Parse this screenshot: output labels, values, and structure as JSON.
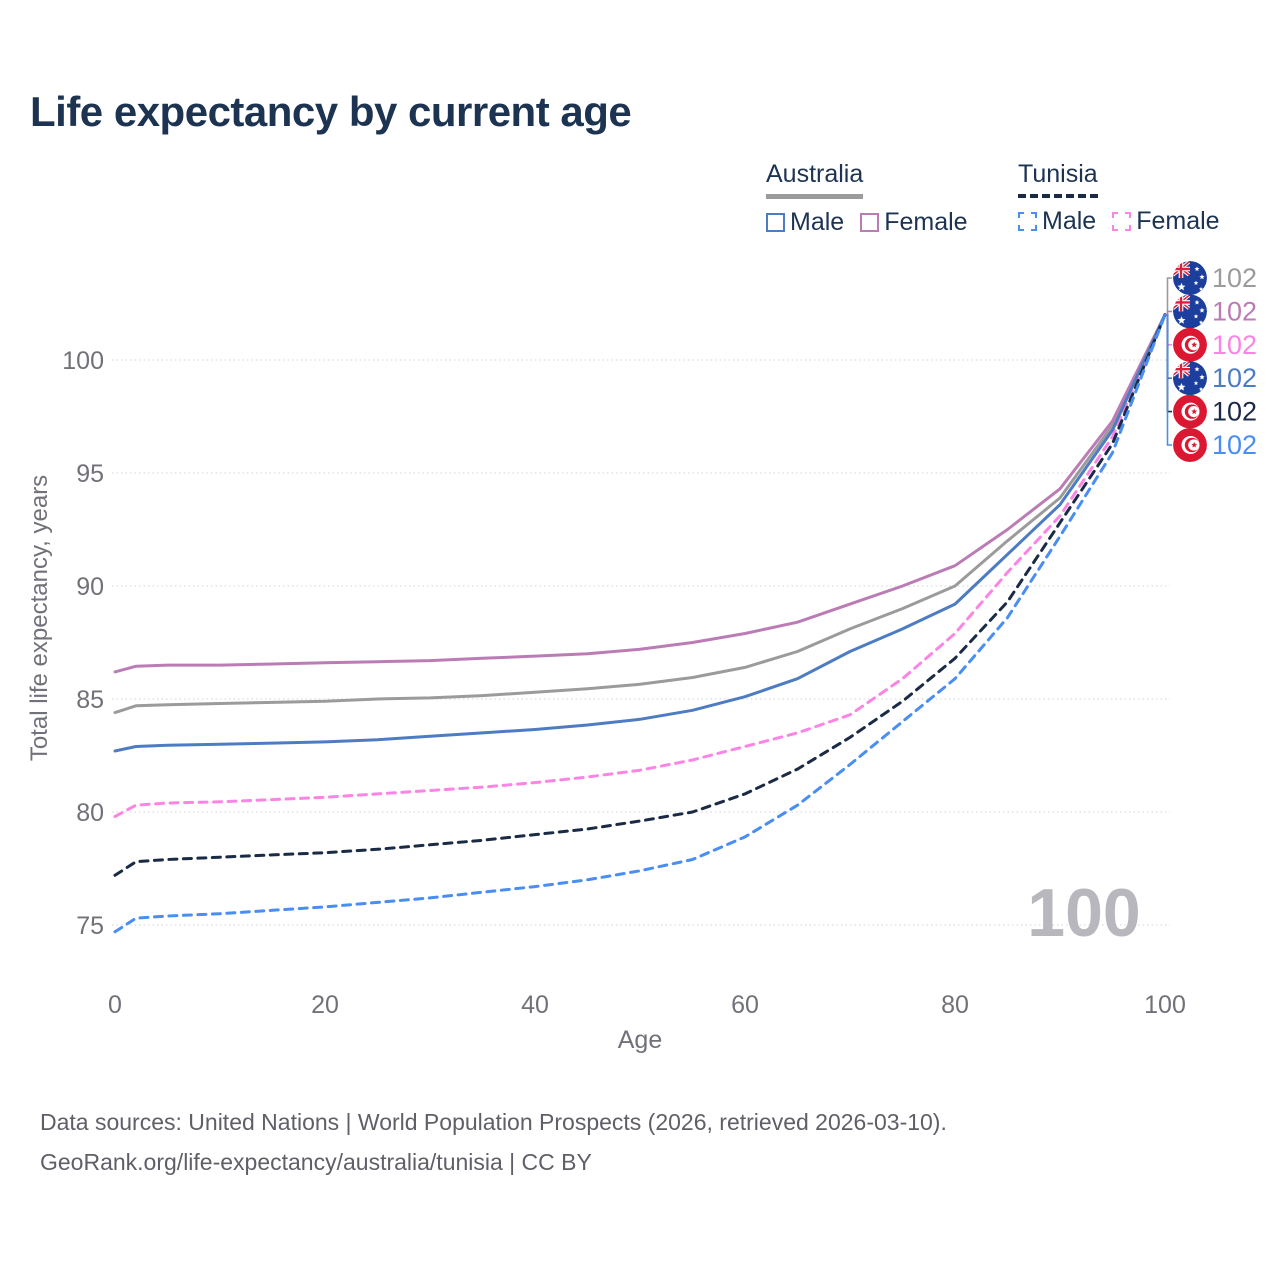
{
  "page": {
    "title": "Life expectancy by current age"
  },
  "legend": {
    "groups": [
      {
        "label": "Australia",
        "line_style": "solid",
        "line_color": "#9b9b9b",
        "items": [
          {
            "label": "Male",
            "color": "#4d7cc3"
          },
          {
            "label": "Female",
            "color": "#bb7cb5"
          }
        ]
      },
      {
        "label": "Tunisia",
        "line_style": "dashed",
        "line_color": "#1b2b45",
        "items": [
          {
            "label": "Male",
            "color": "#4a8ef2"
          },
          {
            "label": "Female",
            "color": "#fb85e5"
          }
        ]
      }
    ]
  },
  "chart_data": {
    "type": "line",
    "title": "Life expectancy by current age",
    "xlabel": "Age",
    "ylabel": "Total life expectancy, years",
    "xlim": [
      0,
      100
    ],
    "ylim": [
      74,
      102.5
    ],
    "x_ticks": [
      0,
      20,
      40,
      60,
      80,
      100
    ],
    "y_ticks": [
      75,
      80,
      85,
      90,
      95,
      100
    ],
    "grid": "horizontal-dotted",
    "hover_age_label": "100",
    "text_color": "#71717a",
    "grid_color": "#dcdce2",
    "watermark_color": "#b7b7bd",
    "series": [
      {
        "id": "australia-total",
        "country": "Australia",
        "sex": "Total",
        "flag": "australia-flag-icon",
        "style": "solid",
        "color": "#9b9b9b",
        "end_value": "102",
        "label_row": 0,
        "points": [
          [
            0,
            84.4
          ],
          [
            2,
            84.7
          ],
          [
            5,
            84.75
          ],
          [
            10,
            84.8
          ],
          [
            15,
            84.85
          ],
          [
            20,
            84.9
          ],
          [
            25,
            85.0
          ],
          [
            30,
            85.05
          ],
          [
            35,
            85.15
          ],
          [
            40,
            85.3
          ],
          [
            45,
            85.45
          ],
          [
            50,
            85.65
          ],
          [
            55,
            85.95
          ],
          [
            60,
            86.4
          ],
          [
            65,
            87.1
          ],
          [
            70,
            88.1
          ],
          [
            75,
            89.0
          ],
          [
            80,
            90.0
          ],
          [
            85,
            92.0
          ],
          [
            90,
            93.9
          ],
          [
            95,
            97.1
          ],
          [
            100,
            102
          ]
        ]
      },
      {
        "id": "australia-female",
        "country": "Australia",
        "sex": "Female",
        "flag": "australia-flag-icon",
        "style": "solid",
        "color": "#bb7cb5",
        "end_value": "102",
        "label_row": 1,
        "points": [
          [
            0,
            86.2
          ],
          [
            2,
            86.45
          ],
          [
            5,
            86.5
          ],
          [
            10,
            86.5
          ],
          [
            15,
            86.55
          ],
          [
            20,
            86.6
          ],
          [
            25,
            86.65
          ],
          [
            30,
            86.7
          ],
          [
            35,
            86.8
          ],
          [
            40,
            86.9
          ],
          [
            45,
            87.0
          ],
          [
            50,
            87.2
          ],
          [
            55,
            87.5
          ],
          [
            60,
            87.9
          ],
          [
            65,
            88.4
          ],
          [
            70,
            89.2
          ],
          [
            75,
            90.0
          ],
          [
            80,
            90.9
          ],
          [
            85,
            92.5
          ],
          [
            90,
            94.3
          ],
          [
            95,
            97.3
          ],
          [
            100,
            102
          ]
        ]
      },
      {
        "id": "tunisia-female",
        "country": "Tunisia",
        "sex": "Female",
        "flag": "tunisia-flag-icon",
        "style": "dashed",
        "color": "#fb85e5",
        "end_value": "102",
        "label_row": 2,
        "points": [
          [
            0,
            79.8
          ],
          [
            2,
            80.3
          ],
          [
            5,
            80.4
          ],
          [
            10,
            80.45
          ],
          [
            15,
            80.55
          ],
          [
            20,
            80.65
          ],
          [
            25,
            80.8
          ],
          [
            30,
            80.95
          ],
          [
            35,
            81.1
          ],
          [
            40,
            81.3
          ],
          [
            45,
            81.55
          ],
          [
            50,
            81.85
          ],
          [
            55,
            82.3
          ],
          [
            60,
            82.9
          ],
          [
            65,
            83.5
          ],
          [
            70,
            84.3
          ],
          [
            75,
            85.9
          ],
          [
            80,
            87.9
          ],
          [
            85,
            90.6
          ],
          [
            90,
            93.1
          ],
          [
            95,
            96.6
          ],
          [
            100,
            102
          ]
        ]
      },
      {
        "id": "australia-male",
        "country": "Australia",
        "sex": "Male",
        "flag": "australia-flag-icon",
        "style": "solid",
        "color": "#4d7cc3",
        "end_value": "102",
        "label_row": 3,
        "points": [
          [
            0,
            82.7
          ],
          [
            2,
            82.9
          ],
          [
            5,
            82.95
          ],
          [
            10,
            83.0
          ],
          [
            15,
            83.05
          ],
          [
            20,
            83.1
          ],
          [
            25,
            83.2
          ],
          [
            30,
            83.35
          ],
          [
            35,
            83.5
          ],
          [
            40,
            83.65
          ],
          [
            45,
            83.85
          ],
          [
            50,
            84.1
          ],
          [
            55,
            84.5
          ],
          [
            60,
            85.1
          ],
          [
            65,
            85.9
          ],
          [
            70,
            87.1
          ],
          [
            75,
            88.1
          ],
          [
            80,
            89.2
          ],
          [
            85,
            91.4
          ],
          [
            90,
            93.6
          ],
          [
            95,
            96.9
          ],
          [
            100,
            102
          ]
        ]
      },
      {
        "id": "tunisia-total",
        "country": "Tunisia",
        "sex": "Total",
        "flag": "tunisia-flag-icon",
        "style": "dashed",
        "color": "#1b2b45",
        "end_value": "102",
        "label_row": 4,
        "points": [
          [
            0,
            77.2
          ],
          [
            2,
            77.8
          ],
          [
            5,
            77.9
          ],
          [
            10,
            78.0
          ],
          [
            15,
            78.1
          ],
          [
            20,
            78.2
          ],
          [
            25,
            78.35
          ],
          [
            30,
            78.55
          ],
          [
            35,
            78.75
          ],
          [
            40,
            79.0
          ],
          [
            45,
            79.25
          ],
          [
            50,
            79.6
          ],
          [
            55,
            80.0
          ],
          [
            60,
            80.8
          ],
          [
            65,
            81.9
          ],
          [
            70,
            83.3
          ],
          [
            75,
            84.9
          ],
          [
            80,
            86.8
          ],
          [
            85,
            89.3
          ],
          [
            90,
            92.8
          ],
          [
            95,
            96.3
          ],
          [
            100,
            102
          ]
        ]
      },
      {
        "id": "tunisia-male",
        "country": "Tunisia",
        "sex": "Male",
        "flag": "tunisia-flag-icon",
        "style": "dashed",
        "color": "#4a8ef2",
        "end_value": "102",
        "label_row": 5,
        "points": [
          [
            0,
            74.7
          ],
          [
            2,
            75.3
          ],
          [
            5,
            75.4
          ],
          [
            10,
            75.5
          ],
          [
            15,
            75.65
          ],
          [
            20,
            75.8
          ],
          [
            25,
            76.0
          ],
          [
            30,
            76.2
          ],
          [
            35,
            76.45
          ],
          [
            40,
            76.7
          ],
          [
            45,
            77.0
          ],
          [
            50,
            77.4
          ],
          [
            55,
            77.9
          ],
          [
            60,
            78.9
          ],
          [
            65,
            80.3
          ],
          [
            70,
            82.1
          ],
          [
            75,
            84.0
          ],
          [
            80,
            85.9
          ],
          [
            85,
            88.6
          ],
          [
            90,
            92.2
          ],
          [
            95,
            95.9
          ],
          [
            100,
            102
          ]
        ]
      }
    ],
    "flag_colors": {
      "australia": {
        "field": "#1c3f9d",
        "red": "#d8213d",
        "white": "#ffffff"
      },
      "tunisia": {
        "field": "#dc1732",
        "white": "#ffffff"
      }
    }
  },
  "footer": {
    "line1": "Data sources: United Nations | World Population Prospects (2026, retrieved 2026-03-10).",
    "line2": "GeoRank.org/life-expectancy/australia/tunisia | CC BY"
  }
}
